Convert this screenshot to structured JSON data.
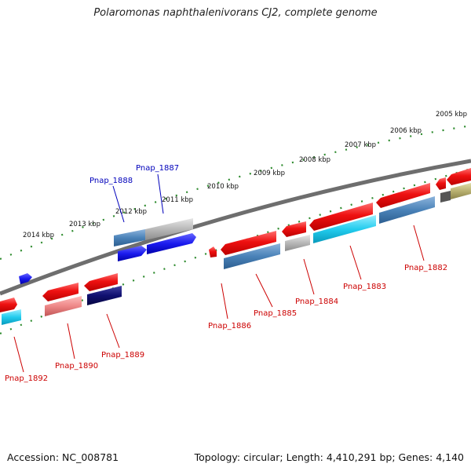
{
  "title": "Polaromonas naphthalenivorans CJ2, complete genome",
  "accession": "Accession: NC_008781",
  "topology": "Topology: circular; Length: 4,410,291 bp; Genes: 4,140",
  "colors": {
    "backbone": "#7a7a7a",
    "ruler": "#2e8b2e",
    "red": "#ee1111",
    "steelblue": "#4a82b8",
    "blue": "#1a1aee",
    "navy": "#101070",
    "cyan": "#22ccee",
    "gray": "#b8b8b8",
    "pink": "#ee8888",
    "olive": "#b8b070",
    "label_red": "#cc0000",
    "label_blue": "#0000bb"
  },
  "kbp_labels": [
    {
      "text": "2005 kbp"
    },
    {
      "text": "2006 kbp"
    },
    {
      "text": "2007 kbp"
    },
    {
      "text": "2008 kbp"
    },
    {
      "text": "2009 kbp"
    },
    {
      "text": "2010 kbp"
    },
    {
      "text": "2011 kbp"
    },
    {
      "text": "2012 kbp"
    },
    {
      "text": "2013 kbp"
    },
    {
      "text": "2014 kbp"
    }
  ],
  "gene_labels": [
    {
      "text": "Pnap_1887",
      "color": "blue"
    },
    {
      "text": "Pnap_1888",
      "color": "blue"
    },
    {
      "text": "Pnap_1882",
      "color": "red"
    },
    {
      "text": "Pnap_1883",
      "color": "red"
    },
    {
      "text": "Pnap_1884",
      "color": "red"
    },
    {
      "text": "Pnap_1885",
      "color": "red"
    },
    {
      "text": "Pnap_1886",
      "color": "red"
    },
    {
      "text": "Pnap_1889",
      "color": "red"
    },
    {
      "text": "Pnap_1890",
      "color": "red"
    },
    {
      "text": "Pnap_1892",
      "color": "red"
    }
  ]
}
